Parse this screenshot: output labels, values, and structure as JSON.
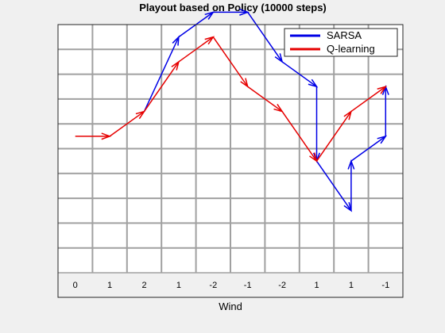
{
  "chart_data": {
    "type": "line",
    "title": "Playout based on Policy (10000 steps)",
    "xlabel": "Wind",
    "ylabel": "",
    "grid": true,
    "legend_position": "top-right",
    "x_tick_labels": [
      "0",
      "1",
      "2",
      "1",
      "-2",
      "-1",
      "-2",
      "1",
      "1",
      "-1"
    ],
    "grid_cols": 10,
    "grid_rows": 10,
    "series": [
      {
        "name": "SARSA",
        "color": "#0000e6",
        "points": [
          [
            2.5,
            6.5
          ],
          [
            3.5,
            9.5
          ],
          [
            4.5,
            10.5
          ],
          [
            5.5,
            10.5
          ],
          [
            6.5,
            8.5
          ],
          [
            7.5,
            7.5
          ],
          [
            7.5,
            4.5
          ],
          [
            8.5,
            2.5
          ],
          [
            8.5,
            4.5
          ],
          [
            9.5,
            5.5
          ],
          [
            9.5,
            7.5
          ]
        ]
      },
      {
        "name": "Q-learning",
        "color": "#e60000",
        "points": [
          [
            0.5,
            5.5
          ],
          [
            1.5,
            5.5
          ],
          [
            2.5,
            6.5
          ],
          [
            3.5,
            8.5
          ],
          [
            4.5,
            9.5
          ],
          [
            5.5,
            7.5
          ],
          [
            6.5,
            6.5
          ],
          [
            7.5,
            4.5
          ],
          [
            8.5,
            6.5
          ],
          [
            9.5,
            7.5
          ]
        ]
      }
    ]
  }
}
